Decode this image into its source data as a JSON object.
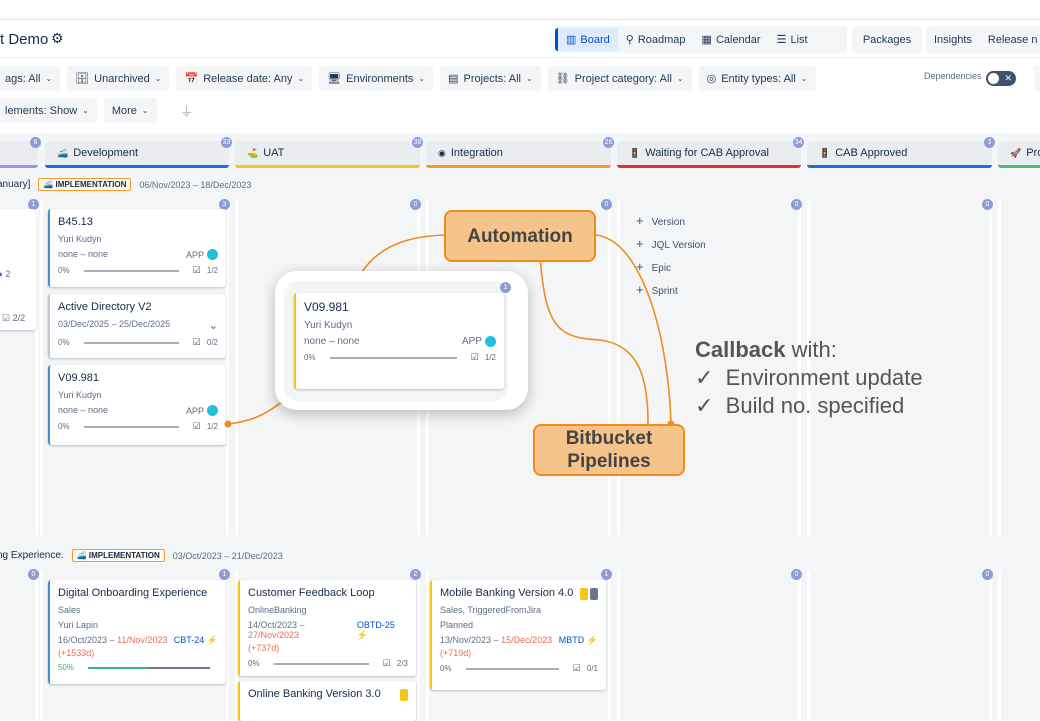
{
  "header": {
    "title": "t Demo",
    "settings_icon": "gear-icon",
    "views": [
      {
        "label": "Board",
        "icon": "board-icon",
        "active": true
      },
      {
        "label": "Roadmap",
        "icon": "roadmap-icon"
      },
      {
        "label": "Calendar",
        "icon": "calendar-icon"
      },
      {
        "label": "List",
        "icon": "list-icon"
      }
    ],
    "extra_tabs": [
      "Packages",
      "Insights",
      "Release n"
    ]
  },
  "filters": {
    "row1": [
      "ags: All",
      "Unarchived",
      "Release date: Any",
      "Environments",
      "Projects: All",
      "Project category: All",
      "Entity types: All"
    ],
    "dependencies_label": "Dependencies",
    "dependencies_on": false,
    "row2": [
      "lements: Show",
      "More"
    ]
  },
  "columns": [
    {
      "label": "",
      "count": "6",
      "color": "#9f8fef"
    },
    {
      "label": "Development",
      "count": "33",
      "color": "#1f6fd6",
      "icon": "🚄"
    },
    {
      "label": "UAT",
      "count": "39",
      "color": "#f5c518",
      "icon": "⛳"
    },
    {
      "label": "Integration",
      "count": "26",
      "color": "#f79a2b",
      "icon": "◉"
    },
    {
      "label": "Waiting for CAB Approval",
      "count": "34",
      "color": "#e03030",
      "icon": "🚦"
    },
    {
      "label": "CAB Approved",
      "count": "3",
      "color": "#1f6fd6",
      "icon": "🚦"
    },
    {
      "label": "Pro",
      "count": "",
      "color": "#4bb97a",
      "icon": "🚀"
    }
  ],
  "lanes": [
    {
      "name": "anuary]",
      "phase": "IMPLEMENTATION",
      "dates": "06/Nov/2023 – 18/Dec/2023",
      "counts": [
        "1",
        "3",
        "0",
        "0",
        "0",
        "0"
      ],
      "partial_card": {
        "progress": "2/2",
        "avatars_more": "2"
      },
      "cards": [
        {
          "title": "B45.13",
          "owner": "Yuri Kudyn",
          "dates": "none – none",
          "tag": "APP",
          "pct": "0%",
          "checks": "1/2"
        },
        {
          "title": "Active Directory V2",
          "dates": "03/Dec/2025 – 25/Dec/2025",
          "pct": "0%",
          "checks": "0/2"
        },
        {
          "title": "V09.981",
          "owner": "Yuri Kudyn",
          "dates": "none – none",
          "tag": "APP",
          "pct": "0%",
          "checks": "1/2"
        }
      ],
      "add_menu": [
        "Version",
        "JQL Version",
        "Epic",
        "Sprint"
      ]
    },
    {
      "name": "ng Experience.",
      "phase": "IMPLEMENTATION",
      "dates": "03/Oct/2023 – 21/Dec/2023",
      "counts": [
        "0",
        "1",
        "2",
        "1",
        "0",
        "0"
      ],
      "cards": [
        {
          "title": "Digital Onboarding Experience",
          "project": "Sales",
          "owner": "Yuri Lapin",
          "start": "16/Oct/2023 –",
          "end": "11/Nov/2023",
          "delay": "(+1533d)",
          "key": "CBT-24",
          "pct": "50%",
          "progress": 50
        },
        {
          "title": "Customer Feedback Loop",
          "project": "OnlineBanking",
          "start": "14/Oct/2023 –",
          "end": "27/Nov/2023",
          "delay": "(+737d)",
          "key": "OBTD-25",
          "pct": "0%",
          "checks": "2/3"
        },
        {
          "title": "Online Banking Version 3.0"
        },
        {
          "title": "Mobile Banking Version 4.0",
          "project": "Sales, TriggeredFromJira",
          "status": "Planned",
          "start": "13/Nov/2023 –",
          "end": "15/Dec/2023",
          "delay": "(+719d)",
          "key": "MBTD",
          "pct": "0%",
          "checks": "0/1"
        }
      ]
    }
  ],
  "popup": {
    "count": "1",
    "card": {
      "title": "V09.981",
      "owner": "Yuri Kudyn",
      "dates": "none – none",
      "tag": "APP",
      "pct": "0%",
      "checks": "1/2"
    }
  },
  "annotations": {
    "automation": "Automation",
    "bitbucket": "Bitbucket Pipelines",
    "callback_bold": "Callback",
    "callback_rest": " with:",
    "checks": [
      "Environment update",
      "Build no. specified"
    ],
    "accent": "#f08c1c"
  }
}
